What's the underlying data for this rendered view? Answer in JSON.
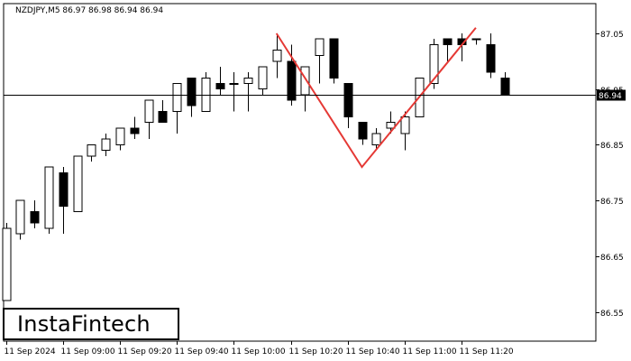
{
  "chart_data": {
    "type": "candlestick",
    "title": "NZDJPY,M5  86.97 86.98 86.94 86.94",
    "yticks": [
      86.55,
      86.65,
      86.75,
      86.85,
      86.95,
      87.05
    ],
    "ytick_labels": [
      "86.55",
      "86.65",
      "86.75",
      "86.85",
      "86.95",
      "87.05"
    ],
    "ylim": [
      86.4975,
      87.1034
    ],
    "current_price": 86.94,
    "current_price_label": "86.94",
    "xticks": [
      {
        "index": 0,
        "label": "11 Sep 2024"
      },
      {
        "index": 4,
        "label": "11 Sep 09:00"
      },
      {
        "index": 8,
        "label": "11 Sep 09:20"
      },
      {
        "index": 12,
        "label": "11 Sep 09:40"
      },
      {
        "index": 16,
        "label": "11 Sep 10:00"
      },
      {
        "index": 20,
        "label": "11 Sep 10:20"
      },
      {
        "index": 24,
        "label": "11 Sep 10:40"
      },
      {
        "index": 28,
        "label": "11 Sep 11:00"
      },
      {
        "index": 32,
        "label": "11 Sep 11:20"
      }
    ],
    "candles": [
      {
        "o": 86.57,
        "h": 86.71,
        "l": 86.57,
        "c": 86.7
      },
      {
        "o": 86.69,
        "h": 86.75,
        "l": 86.68,
        "c": 86.75
      },
      {
        "o": 86.73,
        "h": 86.75,
        "l": 86.7,
        "c": 86.71
      },
      {
        "o": 86.7,
        "h": 86.81,
        "l": 86.69,
        "c": 86.81
      },
      {
        "o": 86.8,
        "h": 86.81,
        "l": 86.69,
        "c": 86.74
      },
      {
        "o": 86.73,
        "h": 86.83,
        "l": 86.73,
        "c": 86.83
      },
      {
        "o": 86.83,
        "h": 86.85,
        "l": 86.82,
        "c": 86.85
      },
      {
        "o": 86.84,
        "h": 86.87,
        "l": 86.83,
        "c": 86.86
      },
      {
        "o": 86.85,
        "h": 86.88,
        "l": 86.84,
        "c": 86.88
      },
      {
        "o": 86.88,
        "h": 86.9,
        "l": 86.86,
        "c": 86.87
      },
      {
        "o": 86.89,
        "h": 86.93,
        "l": 86.86,
        "c": 86.93
      },
      {
        "o": 86.91,
        "h": 86.93,
        "l": 86.89,
        "c": 86.89
      },
      {
        "o": 86.91,
        "h": 86.96,
        "l": 86.87,
        "c": 86.96
      },
      {
        "o": 86.97,
        "h": 86.97,
        "l": 86.9,
        "c": 86.92
      },
      {
        "o": 86.91,
        "h": 86.98,
        "l": 86.91,
        "c": 86.97
      },
      {
        "o": 86.96,
        "h": 86.99,
        "l": 86.94,
        "c": 86.95
      },
      {
        "o": 86.96,
        "h": 86.98,
        "l": 86.91,
        "c": 86.96
      },
      {
        "o": 86.96,
        "h": 86.98,
        "l": 86.91,
        "c": 86.97
      },
      {
        "o": 86.95,
        "h": 86.99,
        "l": 86.94,
        "c": 86.99
      },
      {
        "o": 87.0,
        "h": 87.05,
        "l": 86.97,
        "c": 87.02
      },
      {
        "o": 87.0,
        "h": 87.03,
        "l": 86.92,
        "c": 86.93
      },
      {
        "o": 86.94,
        "h": 86.99,
        "l": 86.91,
        "c": 86.99
      },
      {
        "o": 87.01,
        "h": 87.04,
        "l": 86.96,
        "c": 87.04
      },
      {
        "o": 87.04,
        "h": 87.04,
        "l": 86.96,
        "c": 86.97
      },
      {
        "o": 86.96,
        "h": 86.96,
        "l": 86.88,
        "c": 86.9
      },
      {
        "o": 86.89,
        "h": 86.89,
        "l": 86.85,
        "c": 86.86
      },
      {
        "o": 86.85,
        "h": 86.88,
        "l": 86.84,
        "c": 86.87
      },
      {
        "o": 86.88,
        "h": 86.91,
        "l": 86.87,
        "c": 86.89
      },
      {
        "o": 86.87,
        "h": 86.91,
        "l": 86.84,
        "c": 86.9
      },
      {
        "o": 86.9,
        "h": 86.97,
        "l": 86.9,
        "c": 86.97
      },
      {
        "o": 86.96,
        "h": 87.04,
        "l": 86.95,
        "c": 87.03
      },
      {
        "o": 87.04,
        "h": 87.04,
        "l": 87.0,
        "c": 87.03
      },
      {
        "o": 87.04,
        "h": 87.05,
        "l": 87.0,
        "c": 87.03
      },
      {
        "o": 87.04,
        "h": 87.04,
        "l": 87.03,
        "c": 87.04
      },
      {
        "o": 87.03,
        "h": 87.05,
        "l": 86.97,
        "c": 86.98
      },
      {
        "o": 86.97,
        "h": 86.98,
        "l": 86.94,
        "c": 86.94
      }
    ],
    "pattern": {
      "name": "double top",
      "color": "#e53935",
      "points": [
        {
          "index": 19,
          "price": 87.05
        },
        {
          "index": 25,
          "price": 86.81
        },
        {
          "index": 33,
          "price": 87.06
        }
      ]
    }
  },
  "brand": {
    "logo_text": "InstaFintech"
  }
}
